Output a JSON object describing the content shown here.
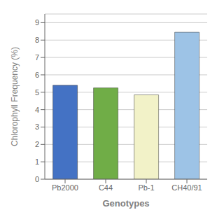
{
  "chart_data": {
    "type": "bar",
    "categories": [
      "Pb2000",
      "C44",
      "Pb-1",
      "CH40/91"
    ],
    "values": [
      5.4,
      5.25,
      4.85,
      8.45
    ],
    "colors": [
      "#4472C4",
      "#70AD47",
      "#F2F2C8",
      "#9DC3E6"
    ],
    "xlabel": "Genotypes",
    "ylabel": "Chlorophyll Frequency (%)",
    "ylim": [
      0,
      9.5
    ],
    "yticks": [
      0,
      1,
      2,
      3,
      4,
      5,
      6,
      7,
      8,
      9
    ],
    "grid": true
  }
}
